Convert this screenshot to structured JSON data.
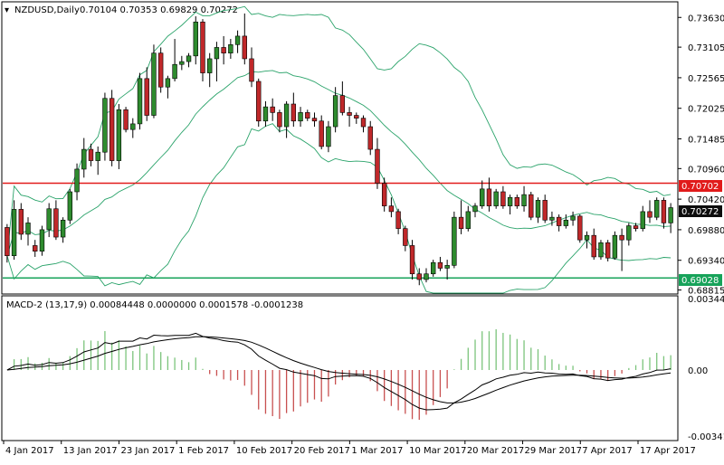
{
  "header": {
    "symbol": "NZDUSD,Daily",
    "ohlc": "0.70104 0.70353 0.69829 0.70272"
  },
  "macd_header": "MACD-2 (13,17,9) 0.00084448 0.0000000 0.0001578 -0.0001238",
  "colors": {
    "bull": "#2e8b2e",
    "bear": "#c0282a",
    "band": "#2aa36a",
    "resistance": "#e11b1b",
    "support": "#17a35a",
    "current_box": "#0d0d0d",
    "macd_pos": "#7cc47c",
    "macd_neg": "#c85050"
  },
  "price_axis": {
    "ticks": [
      "0.73630",
      "0.73105",
      "0.72565",
      "0.72025",
      "0.71485",
      "0.70960",
      "0.70420",
      "0.69880",
      "0.69340",
      "0.68815"
    ]
  },
  "levels": {
    "resistance": {
      "value": 0.70702,
      "label": "0.70702"
    },
    "support": {
      "value": 0.69028,
      "label": "0.69028"
    },
    "current": {
      "value": 0.70272,
      "label": "0.70272"
    }
  },
  "macd_axis": {
    "ticks": [
      "0.003443",
      "0.00",
      "-0.003414"
    ]
  },
  "date_axis": {
    "labels": [
      "4 Jan 2017",
      "13 Jan 2017",
      "23 Jan 2017",
      "1 Feb 2017",
      "10 Feb 2017",
      "20 Feb 2017",
      "1 Mar 2017",
      "10 Mar 2017",
      "20 Mar 2017",
      "29 Mar 2017",
      "7 Apr 2017",
      "17 Apr 2017"
    ]
  },
  "chart_data": {
    "type": "candlestick",
    "title": "NZDUSD,Daily",
    "ylim": [
      0.6876,
      0.7389
    ],
    "candles": [
      [
        0.6992,
        0.6998,
        0.693,
        0.6942
      ],
      [
        0.6942,
        0.704,
        0.6935,
        0.7024
      ],
      [
        0.7024,
        0.7035,
        0.697,
        0.698
      ],
      [
        0.698,
        0.701,
        0.696,
        0.7
      ],
      [
        0.696,
        0.697,
        0.694,
        0.695
      ],
      [
        0.695,
        0.6995,
        0.6942,
        0.6988
      ],
      [
        0.6988,
        0.7035,
        0.6975,
        0.7025
      ],
      [
        0.7025,
        0.704,
        0.697,
        0.6975
      ],
      [
        0.6975,
        0.701,
        0.6965,
        0.7005
      ],
      [
        0.7005,
        0.706,
        0.6998,
        0.7055
      ],
      [
        0.7055,
        0.7105,
        0.704,
        0.7095
      ],
      [
        0.7095,
        0.715,
        0.708,
        0.713
      ],
      [
        0.713,
        0.714,
        0.71,
        0.711
      ],
      [
        0.711,
        0.7135,
        0.7085,
        0.7125
      ],
      [
        0.7125,
        0.723,
        0.711,
        0.722
      ],
      [
        0.722,
        0.7235,
        0.71,
        0.711
      ],
      [
        0.711,
        0.721,
        0.7095,
        0.72
      ],
      [
        0.72,
        0.7205,
        0.716,
        0.7165
      ],
      [
        0.7165,
        0.7185,
        0.715,
        0.7175
      ],
      [
        0.7175,
        0.7265,
        0.7165,
        0.7255
      ],
      [
        0.7255,
        0.7275,
        0.718,
        0.719
      ],
      [
        0.719,
        0.7315,
        0.7185,
        0.73
      ],
      [
        0.73,
        0.731,
        0.723,
        0.724
      ],
      [
        0.724,
        0.726,
        0.722,
        0.7255
      ],
      [
        0.7255,
        0.7325,
        0.725,
        0.728
      ],
      [
        0.728,
        0.7295,
        0.727,
        0.7285
      ],
      [
        0.7285,
        0.73,
        0.7275,
        0.7295
      ],
      [
        0.7295,
        0.7365,
        0.728,
        0.7355
      ],
      [
        0.7355,
        0.736,
        0.725,
        0.7265
      ],
      [
        0.7265,
        0.73,
        0.724,
        0.729
      ],
      [
        0.729,
        0.732,
        0.725,
        0.731
      ],
      [
        0.731,
        0.733,
        0.728,
        0.73
      ],
      [
        0.73,
        0.7325,
        0.729,
        0.7315
      ],
      [
        0.7315,
        0.734,
        0.73,
        0.733
      ],
      [
        0.733,
        0.737,
        0.728,
        0.729
      ],
      [
        0.729,
        0.731,
        0.724,
        0.725
      ],
      [
        0.725,
        0.7255,
        0.717,
        0.718
      ],
      [
        0.718,
        0.7215,
        0.717,
        0.7205
      ],
      [
        0.7205,
        0.722,
        0.718,
        0.7195
      ],
      [
        0.7195,
        0.72,
        0.716,
        0.717
      ],
      [
        0.717,
        0.7215,
        0.715,
        0.721
      ],
      [
        0.721,
        0.723,
        0.717,
        0.718
      ],
      [
        0.718,
        0.7205,
        0.717,
        0.7195
      ],
      [
        0.7195,
        0.72,
        0.718,
        0.7185
      ],
      [
        0.7185,
        0.7195,
        0.717,
        0.718
      ],
      [
        0.718,
        0.719,
        0.713,
        0.7135
      ],
      [
        0.7135,
        0.718,
        0.7125,
        0.717
      ],
      [
        0.717,
        0.724,
        0.716,
        0.7225
      ],
      [
        0.7225,
        0.725,
        0.719,
        0.7195
      ],
      [
        0.7195,
        0.7205,
        0.717,
        0.719
      ],
      [
        0.719,
        0.7195,
        0.7175,
        0.7185
      ],
      [
        0.7185,
        0.719,
        0.716,
        0.717
      ],
      [
        0.717,
        0.718,
        0.712,
        0.713
      ],
      [
        0.713,
        0.715,
        0.706,
        0.707
      ],
      [
        0.707,
        0.708,
        0.702,
        0.703
      ],
      [
        0.703,
        0.7045,
        0.701,
        0.702
      ],
      [
        0.702,
        0.7025,
        0.698,
        0.699
      ],
      [
        0.699,
        0.6995,
        0.695,
        0.696
      ],
      [
        0.696,
        0.697,
        0.69,
        0.691
      ],
      [
        0.691,
        0.692,
        0.689,
        0.69
      ],
      [
        0.69,
        0.692,
        0.6895,
        0.691
      ],
      [
        0.691,
        0.6935,
        0.6905,
        0.693
      ],
      [
        0.693,
        0.694,
        0.6915,
        0.692
      ],
      [
        0.692,
        0.6935,
        0.69,
        0.6925
      ],
      [
        0.6925,
        0.702,
        0.692,
        0.701
      ],
      [
        0.701,
        0.704,
        0.698,
        0.699
      ],
      [
        0.699,
        0.703,
        0.6985,
        0.702
      ],
      [
        0.702,
        0.7035,
        0.701,
        0.703
      ],
      [
        0.703,
        0.7075,
        0.7025,
        0.706
      ],
      [
        0.706,
        0.708,
        0.702,
        0.703
      ],
      [
        0.703,
        0.706,
        0.7025,
        0.7055
      ],
      [
        0.7055,
        0.7065,
        0.7025,
        0.703
      ],
      [
        0.703,
        0.705,
        0.7015,
        0.7045
      ],
      [
        0.7045,
        0.705,
        0.7025,
        0.703
      ],
      [
        0.703,
        0.7065,
        0.702,
        0.705
      ],
      [
        0.705,
        0.7055,
        0.7005,
        0.701
      ],
      [
        0.701,
        0.7045,
        0.7,
        0.704
      ],
      [
        0.704,
        0.705,
        0.7,
        0.7005
      ],
      [
        0.7005,
        0.702,
        0.6995,
        0.701
      ],
      [
        0.701,
        0.7015,
        0.6985,
        0.6995
      ],
      [
        0.6995,
        0.7015,
        0.699,
        0.7005
      ],
      [
        0.7005,
        0.702,
        0.6995,
        0.7012
      ],
      [
        0.7012,
        0.7015,
        0.6965,
        0.697
      ],
      [
        0.697,
        0.6985,
        0.6955,
        0.6978
      ],
      [
        0.6978,
        0.699,
        0.6935,
        0.694
      ],
      [
        0.694,
        0.697,
        0.6935,
        0.6965
      ],
      [
        0.6965,
        0.697,
        0.6932,
        0.6938
      ],
      [
        0.6938,
        0.6985,
        0.6935,
        0.6978
      ],
      [
        0.6978,
        0.699,
        0.6915,
        0.697
      ],
      [
        0.697,
        0.7,
        0.696,
        0.6995
      ],
      [
        0.6995,
        0.7,
        0.6985,
        0.699
      ],
      [
        0.699,
        0.703,
        0.6985,
        0.702
      ],
      [
        0.702,
        0.704,
        0.7,
        0.701
      ],
      [
        0.701,
        0.7045,
        0.7005,
        0.704
      ],
      [
        0.704,
        0.7045,
        0.699,
        0.7
      ],
      [
        0.7,
        0.7035,
        0.6982,
        0.7027
      ]
    ]
  }
}
